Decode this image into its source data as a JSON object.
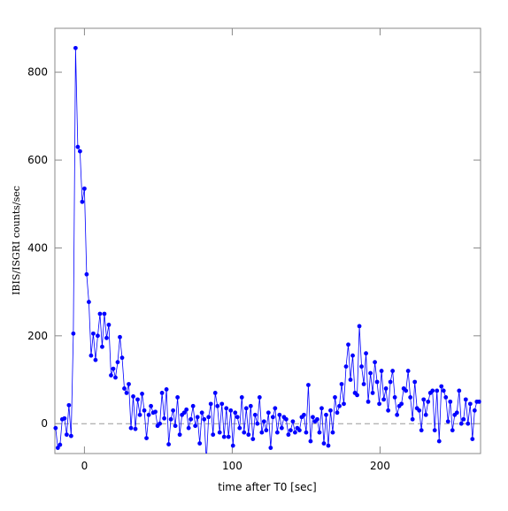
{
  "chart_data": {
    "type": "line",
    "xlabel": "time after T0 [sec]",
    "ylabel": "IBIS/ISGRI counts/sec",
    "xlim": [
      -20,
      268
    ],
    "ylim": [
      -68,
      900
    ],
    "xticks": [
      0,
      100,
      200
    ],
    "yticks": [
      0,
      200,
      400,
      600,
      800
    ],
    "reference_line": 0,
    "x": [
      -19.5,
      -18,
      -16.5,
      -15,
      -13.5,
      -12,
      -10.5,
      -9,
      -7.5,
      -6,
      -4.5,
      -3,
      -1.5,
      0,
      1.5,
      3,
      4.5,
      6,
      7.5,
      9,
      10.5,
      12,
      13.5,
      15,
      16.5,
      18,
      19.5,
      21,
      22.5,
      24,
      25.5,
      27,
      28.5,
      30,
      31.5,
      33,
      34.5,
      36,
      37.5,
      39,
      40.5,
      42,
      43.5,
      45,
      46.5,
      48,
      49.5,
      51,
      52.5,
      54,
      55.5,
      57,
      58.5,
      60,
      61.5,
      63,
      64.5,
      66,
      67.5,
      69,
      70.5,
      72,
      73.5,
      75,
      76.5,
      78,
      79.5,
      81,
      82.5,
      84,
      85.5,
      87,
      88.5,
      90,
      91.5,
      93,
      94.5,
      96,
      97.5,
      99,
      100.5,
      102,
      103.5,
      105,
      106.5,
      108,
      109.5,
      111,
      112.5,
      114,
      115.5,
      117,
      118.5,
      120,
      121.5,
      123,
      124.5,
      126,
      127.5,
      129,
      130.5,
      132,
      133.5,
      135,
      136.5,
      138,
      139.5,
      141,
      142.5,
      144,
      145.5,
      147,
      148.5,
      150,
      151.5,
      153,
      154.5,
      156,
      157.5,
      159,
      160.5,
      162,
      163.5,
      165,
      166.5,
      168,
      169.5,
      171,
      172.5,
      174,
      175.5,
      177,
      178.5,
      180,
      181.5,
      183,
      184.5,
      186,
      187.5,
      189,
      190.5,
      192,
      193.5,
      195,
      196.5,
      198,
      199.5,
      201,
      202.5,
      204,
      205.5,
      207,
      208.5,
      210,
      211.5,
      213,
      214.5,
      216,
      217.5,
      219,
      220.5,
      222,
      223.5,
      225,
      226.5,
      228,
      229.5,
      231,
      232.5,
      234,
      235.5,
      237,
      238.5,
      240,
      241.5,
      243,
      244.5,
      246,
      247.5,
      249,
      250.5,
      252,
      253.5,
      255,
      256.5,
      258,
      259.5,
      261,
      262.5,
      264,
      265.5,
      267
    ],
    "series": [
      {
        "color": "#0000ff",
        "values": [
          -10,
          -55,
          -48,
          10,
          12,
          -25,
          42,
          -28,
          205,
          855,
          630,
          620,
          505,
          535,
          340,
          277,
          155,
          205,
          145,
          200,
          250,
          175,
          250,
          195,
          225,
          110,
          125,
          105,
          140,
          197,
          150,
          80,
          70,
          90,
          -10,
          62,
          -12,
          55,
          20,
          68,
          30,
          -33,
          20,
          40,
          25,
          27,
          -5,
          0,
          70,
          12,
          78,
          -47,
          10,
          30,
          -5,
          60,
          -25,
          20,
          25,
          32,
          -10,
          10,
          40,
          -5,
          15,
          -45,
          25,
          10,
          -85,
          15,
          45,
          -25,
          70,
          40,
          -20,
          45,
          -30,
          35,
          -30,
          30,
          -50,
          25,
          15,
          -10,
          60,
          -20,
          35,
          -25,
          40,
          -35,
          20,
          0,
          60,
          -20,
          5,
          -15,
          25,
          -55,
          15,
          35,
          -20,
          20,
          -10,
          15,
          10,
          -25,
          -15,
          5,
          -20,
          -10,
          -15,
          15,
          20,
          -20,
          88,
          -40,
          15,
          5,
          10,
          -20,
          35,
          -45,
          20,
          -50,
          30,
          -20,
          60,
          25,
          40,
          90,
          45,
          130,
          180,
          100,
          155,
          70,
          65,
          222,
          130,
          90,
          160,
          50,
          115,
          70,
          140,
          95,
          45,
          120,
          55,
          80,
          30,
          95,
          120,
          60,
          20,
          40,
          45,
          80,
          75,
          120,
          60,
          10,
          95,
          35,
          30,
          -15,
          55,
          20,
          50,
          70,
          75,
          -15,
          75,
          -40,
          85,
          75,
          60,
          5,
          50,
          -15,
          20,
          25,
          75,
          0,
          10,
          55,
          0,
          45,
          -35,
          30,
          50,
          50
        ]
      }
    ]
  }
}
